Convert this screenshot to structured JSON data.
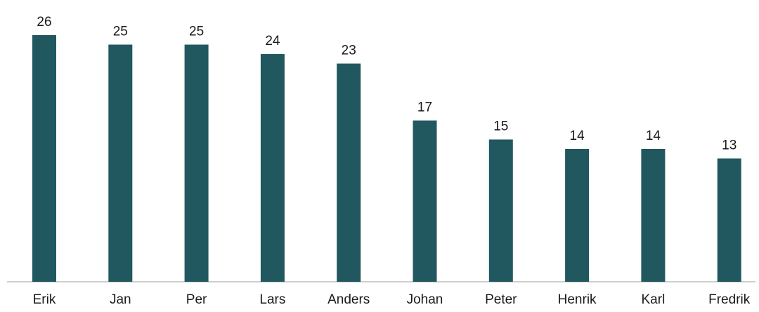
{
  "chart_data": {
    "type": "bar",
    "categories": [
      "Erik",
      "Jan",
      "Per",
      "Lars",
      "Anders",
      "Johan",
      "Peter",
      "Henrik",
      "Karl",
      "Fredrik"
    ],
    "values": [
      26,
      25,
      25,
      24,
      23,
      17,
      15,
      14,
      14,
      13
    ],
    "title": "",
    "xlabel": "",
    "ylabel": "",
    "ylim": [
      0,
      26
    ],
    "grid": false,
    "legend": "none",
    "colors": {
      "bar": "#21585f",
      "axis": "#bfbfbf",
      "text": "#1a1a1a"
    }
  }
}
